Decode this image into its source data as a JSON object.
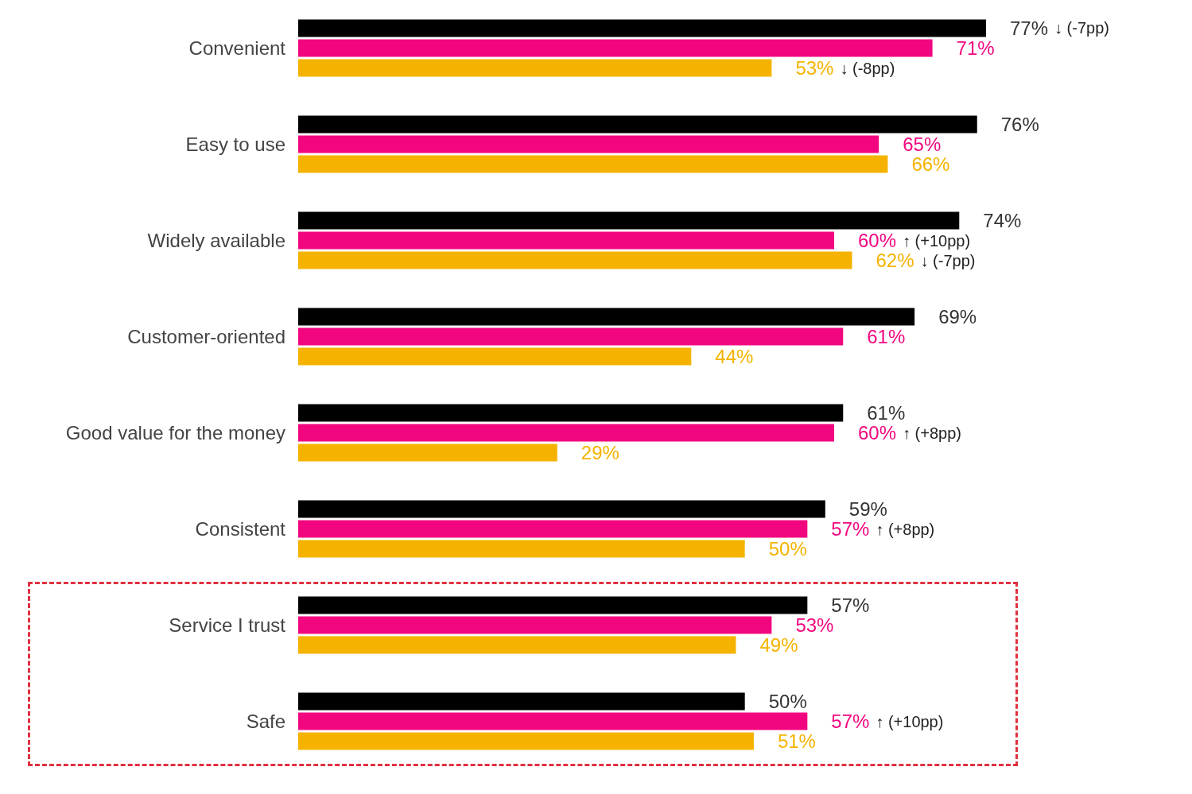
{
  "chart_data": {
    "type": "bar",
    "orientation": "horizontal",
    "categories": [
      "Convenient",
      "Easy to use",
      "Widely available",
      "Customer-oriented",
      "Good value for the money",
      "Consistent",
      "Service I trust",
      "Safe"
    ],
    "series": [
      {
        "color": "#000000",
        "values": [
          77,
          76,
          74,
          69,
          61,
          59,
          57,
          50
        ],
        "value_labels": [
          "77% ↓ (-7pp)",
          "76%",
          "74%",
          "69%",
          "61%",
          "59%",
          "57%",
          "50%"
        ]
      },
      {
        "color": "#f2067f",
        "values": [
          71,
          65,
          60,
          61,
          60,
          57,
          53,
          57
        ],
        "value_labels": [
          "71%",
          "65%",
          "60% ↑ (+10pp)",
          "61%",
          "60% ↑ (+8pp)",
          "57% ↑ (+8pp)",
          "53%",
          "57% ↑ (+10pp)"
        ]
      },
      {
        "color": "#f5b300",
        "values": [
          53,
          66,
          62,
          44,
          29,
          50,
          49,
          51
        ],
        "value_labels": [
          "53% ↓ (-8pp)",
          "66%",
          "62% ↓ (-7pp)",
          "44%",
          "29%",
          "50%",
          "49%",
          "51%"
        ]
      }
    ]
  }
}
